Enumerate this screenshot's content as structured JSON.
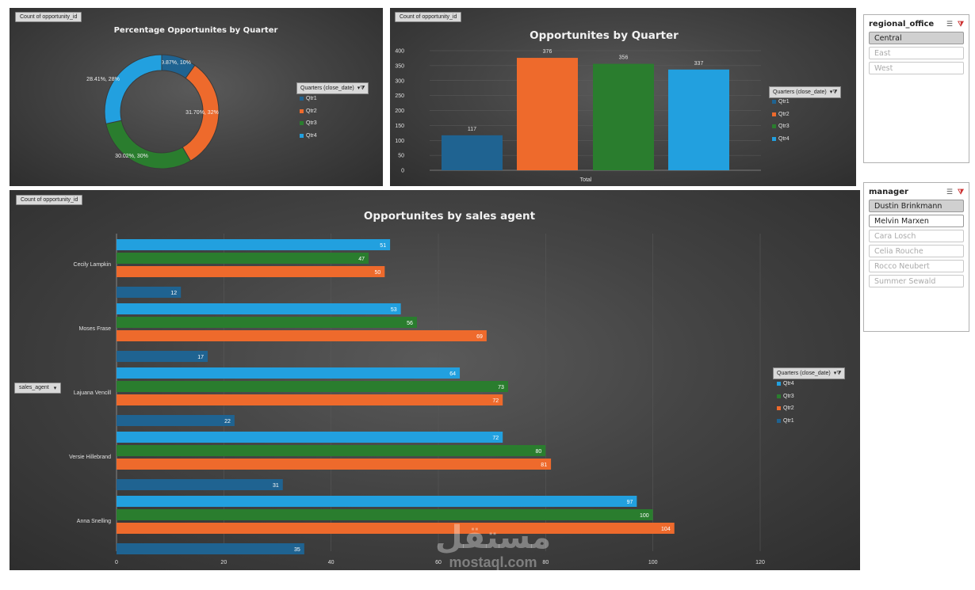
{
  "colors": {
    "q1": "#1f6391",
    "q2": "#ee6a2c",
    "q3": "#2a7d2e",
    "q4": "#22a0df"
  },
  "donut": {
    "field_button": "Count of opportunity_id",
    "title": "Percentage Opportunites by Quarter",
    "legend_title": "Quarters (close_date)",
    "legend": [
      "Qtr1",
      "Qtr2",
      "Qtr3",
      "Qtr4"
    ],
    "chart_data": {
      "type": "pie",
      "categories": [
        "Qtr1",
        "Qtr2",
        "Qtr3",
        "Qtr4"
      ],
      "values": [
        9.87,
        31.7,
        30.02,
        28.41
      ],
      "labels": [
        "9.87%, 10%",
        "31.70%, 32%",
        "30.02%, 30%",
        "28.41%, 28%"
      ]
    }
  },
  "column": {
    "field_button": "Count of opportunity_id",
    "title": "Opportunites by Quarter",
    "legend_title": "Quarters (close_date)",
    "legend": [
      "Qtr1",
      "Qtr2",
      "Qtr3",
      "Qtr4"
    ],
    "chart_data": {
      "type": "bar",
      "categories": [
        "Total"
      ],
      "series": [
        {
          "name": "Qtr1",
          "values": [
            117
          ]
        },
        {
          "name": "Qtr2",
          "values": [
            376
          ]
        },
        {
          "name": "Qtr3",
          "values": [
            356
          ]
        },
        {
          "name": "Qtr4",
          "values": [
            337
          ]
        }
      ],
      "yticks": [
        "0",
        "50",
        "100",
        "150",
        "200",
        "250",
        "300",
        "350",
        "400"
      ],
      "ylim": [
        0,
        400
      ],
      "xlabel": "Total"
    }
  },
  "hbar": {
    "field_button": "Count of opportunity_id",
    "axis_button": "sales_agent",
    "title": "Opportunites by sales agent",
    "legend_title": "Quarters (close_date)",
    "legend": [
      "Qtr4",
      "Qtr3",
      "Qtr2",
      "Qtr1"
    ],
    "chart_data": {
      "type": "bar",
      "orientation": "horizontal",
      "categories": [
        "Cecily Lampkin",
        "Moses Frase",
        "Lajuana Vencill",
        "Versie Hillebrand",
        "Anna Snelling"
      ],
      "series": [
        {
          "name": "Qtr4",
          "values": [
            51,
            53,
            64,
            72,
            97
          ]
        },
        {
          "name": "Qtr3",
          "values": [
            47,
            56,
            73,
            80,
            100
          ]
        },
        {
          "name": "Qtr2",
          "values": [
            50,
            69,
            72,
            81,
            104
          ]
        },
        {
          "name": "Qtr1",
          "values": [
            12,
            17,
            22,
            31,
            35
          ]
        }
      ],
      "xticks": [
        "0",
        "20",
        "40",
        "60",
        "80",
        "100",
        "120"
      ],
      "xlim": [
        0,
        120
      ]
    }
  },
  "slicer_region": {
    "title": "regional_office",
    "items": [
      {
        "label": "Central",
        "state": "selected"
      },
      {
        "label": "East",
        "state": "none"
      },
      {
        "label": "West",
        "state": "none"
      }
    ]
  },
  "slicer_manager": {
    "title": "manager",
    "items": [
      {
        "label": "Dustin Brinkmann",
        "state": "selected"
      },
      {
        "label": "Melvin Marxen",
        "state": "avail"
      },
      {
        "label": "Cara Losch",
        "state": "none"
      },
      {
        "label": "Celia Rouche",
        "state": "none"
      },
      {
        "label": "Rocco Neubert",
        "state": "none"
      },
      {
        "label": "Summer Sewald",
        "state": "none"
      }
    ]
  },
  "watermark": {
    "arabic": "مستقل",
    "latin": "mostaql.com"
  }
}
